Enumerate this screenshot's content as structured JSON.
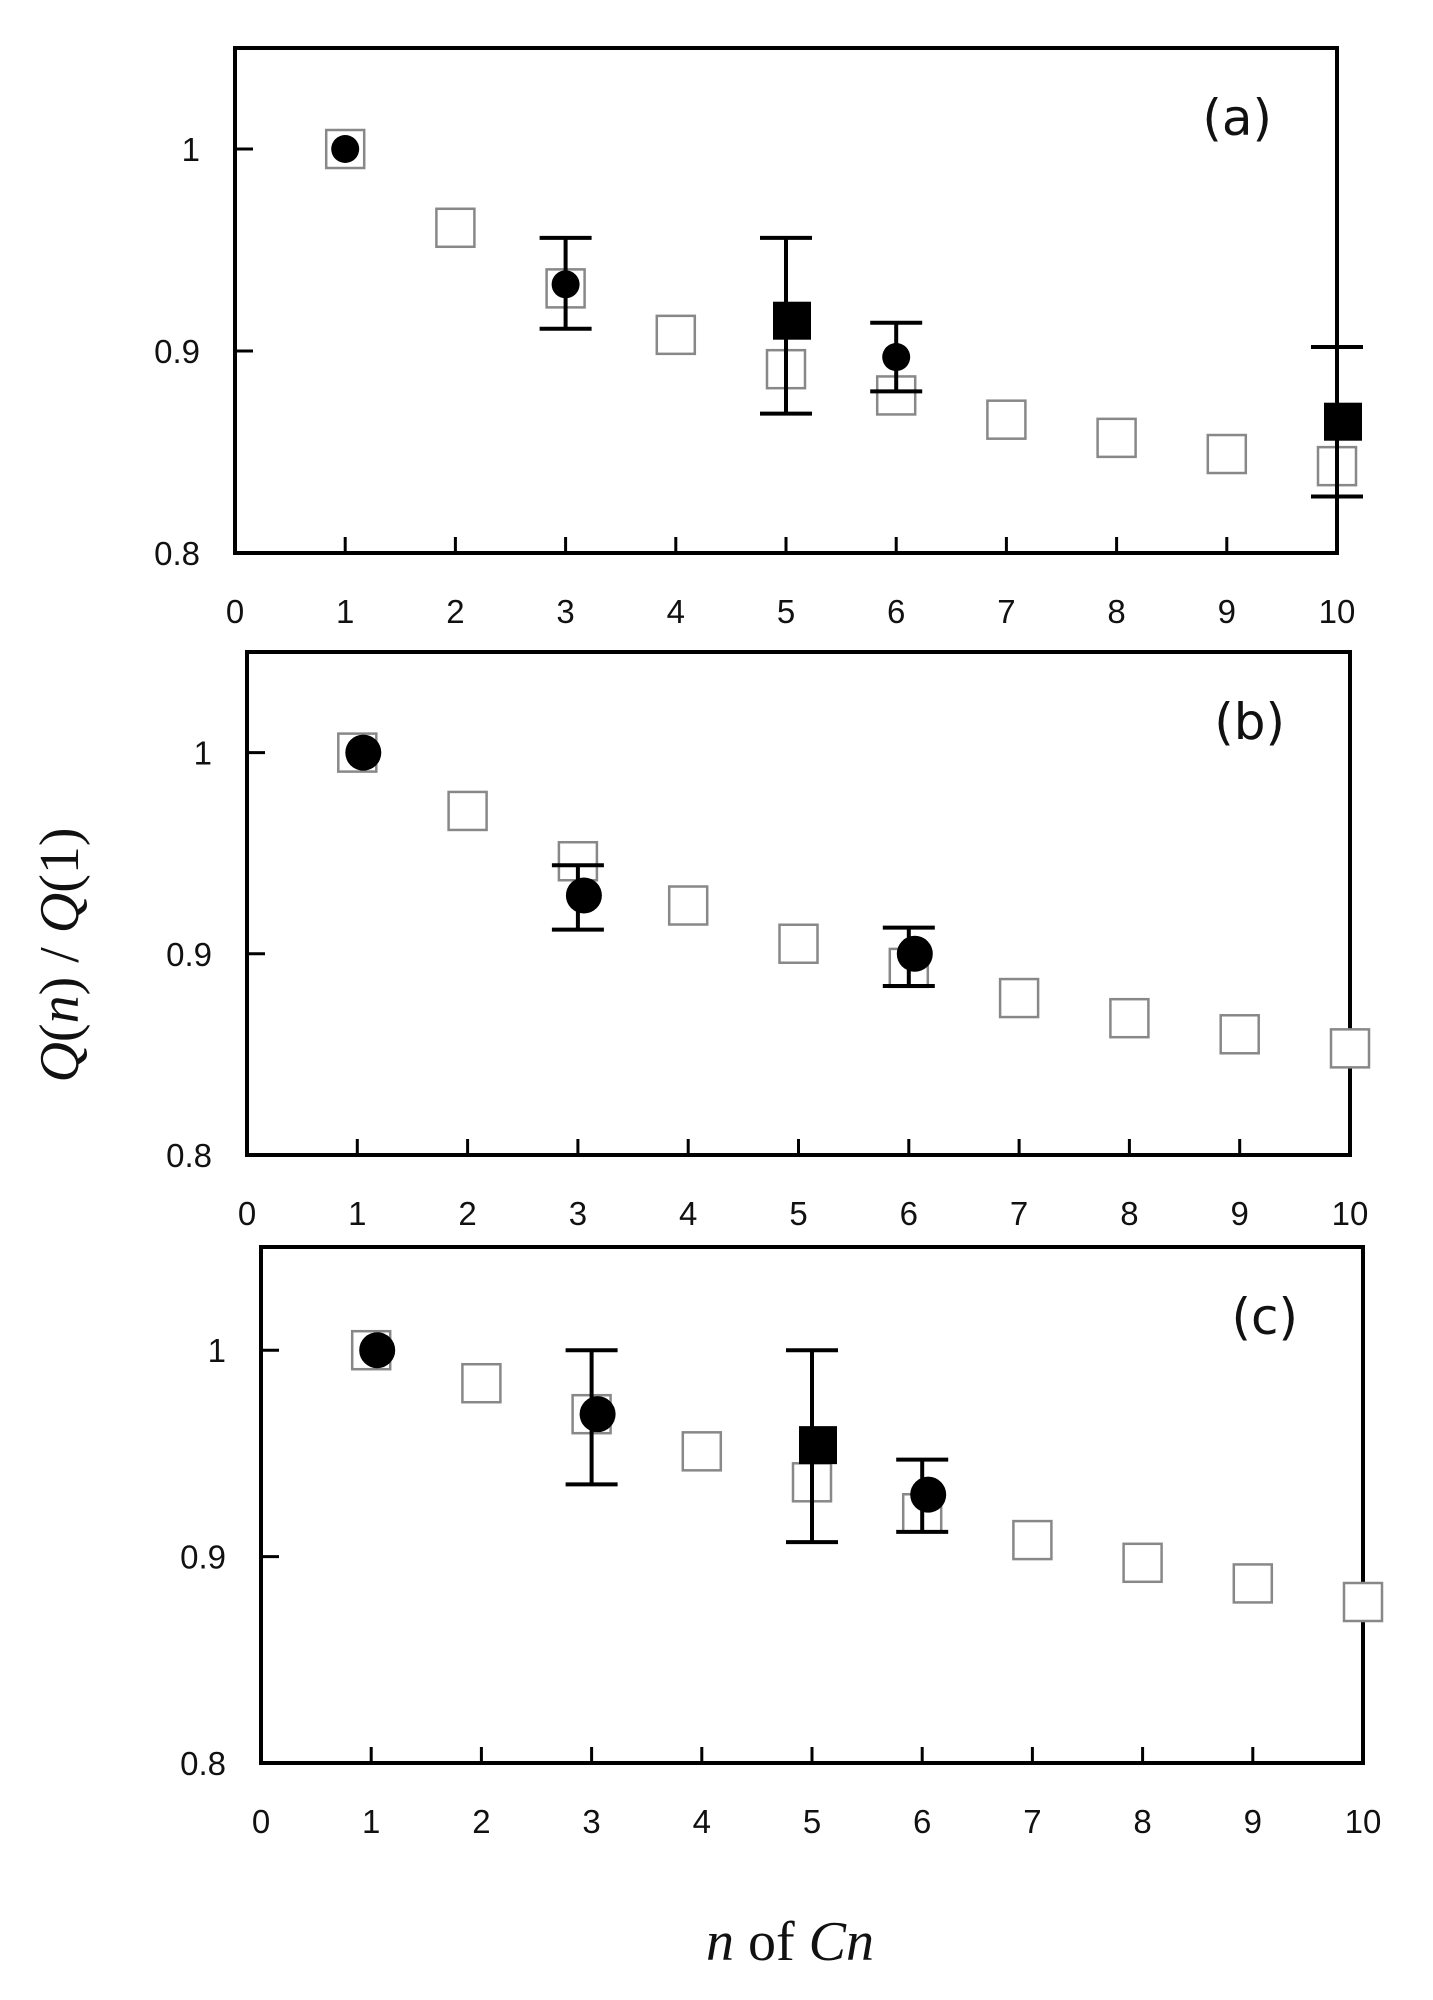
{
  "chart_data": {
    "type": "scatter",
    "xlabel": {
      "var": "n",
      "mid": " of ",
      "end": "Cn"
    },
    "ylabel": {
      "q1": "Q",
      "p1": "(",
      "n": "n",
      "p2": ")",
      "sep": " / ",
      "q2": "Q",
      "p3": "(1)"
    },
    "xlim": [
      0,
      10
    ],
    "ylim": [
      0.8,
      1.0
    ],
    "x_ticks": [
      "0",
      "1",
      "2",
      "3",
      "4",
      "5",
      "6",
      "7",
      "8",
      "9",
      "10"
    ],
    "y_ticks": [
      "0.8",
      "0.9",
      "1"
    ],
    "colors": {
      "open": "#888888",
      "filled": "#000000",
      "frame": "#000000"
    },
    "panels": [
      {
        "label": "(a)",
        "open_squares": [
          {
            "x": 1,
            "y": 1.0
          },
          {
            "x": 2,
            "y": 0.961
          },
          {
            "x": 3,
            "y": 0.931
          },
          {
            "x": 4,
            "y": 0.908
          },
          {
            "x": 5,
            "y": 0.891
          },
          {
            "x": 6,
            "y": 0.878
          },
          {
            "x": 7,
            "y": 0.866
          },
          {
            "x": 8,
            "y": 0.857
          },
          {
            "x": 9,
            "y": 0.849
          },
          {
            "x": 10,
            "y": 0.843
          }
        ],
        "filled_circles": [
          {
            "x": 1,
            "y": 1.0
          },
          {
            "x": 3,
            "y": 0.933,
            "err_low": 0.911,
            "err_high": 0.956
          },
          {
            "x": 6,
            "y": 0.897,
            "err_low": 0.88,
            "err_high": 0.914
          }
        ],
        "filled_squares": [
          {
            "x": 5,
            "y": 0.915,
            "err_low": 0.869,
            "err_high": 0.956
          },
          {
            "x": 10,
            "y": 0.865,
            "err_low": 0.828,
            "err_high": 0.902
          }
        ]
      },
      {
        "label": "(b)",
        "open_squares": [
          {
            "x": 1,
            "y": 1.0
          },
          {
            "x": 2,
            "y": 0.971
          },
          {
            "x": 3,
            "y": 0.946
          },
          {
            "x": 4,
            "y": 0.924
          },
          {
            "x": 5,
            "y": 0.905
          },
          {
            "x": 6,
            "y": 0.893
          },
          {
            "x": 7,
            "y": 0.878
          },
          {
            "x": 8,
            "y": 0.868
          },
          {
            "x": 9,
            "y": 0.86
          },
          {
            "x": 10,
            "y": 0.853
          }
        ],
        "filled_circles": [
          {
            "x": 1,
            "y": 1.0
          },
          {
            "x": 3,
            "y": 0.929,
            "err_low": 0.912,
            "err_high": 0.944
          },
          {
            "x": 6,
            "y": 0.9,
            "err_low": 0.884,
            "err_high": 0.913
          }
        ],
        "filled_squares": []
      },
      {
        "label": "(c)",
        "open_squares": [
          {
            "x": 1,
            "y": 1.0
          },
          {
            "x": 2,
            "y": 0.984
          },
          {
            "x": 3,
            "y": 0.969
          },
          {
            "x": 4,
            "y": 0.951
          },
          {
            "x": 5,
            "y": 0.936
          },
          {
            "x": 6,
            "y": 0.921
          },
          {
            "x": 7,
            "y": 0.908
          },
          {
            "x": 8,
            "y": 0.897
          },
          {
            "x": 9,
            "y": 0.887
          },
          {
            "x": 10,
            "y": 0.878
          }
        ],
        "filled_circles": [
          {
            "x": 1,
            "y": 1.0
          },
          {
            "x": 3,
            "y": 0.969,
            "err_low": 0.935,
            "err_high": 1.0
          },
          {
            "x": 6,
            "y": 0.93,
            "err_low": 0.912,
            "err_high": 0.947
          }
        ],
        "filled_squares": [
          {
            "x": 5,
            "y": 0.954,
            "err_low": 0.907,
            "err_high": 1.0
          }
        ]
      }
    ]
  }
}
